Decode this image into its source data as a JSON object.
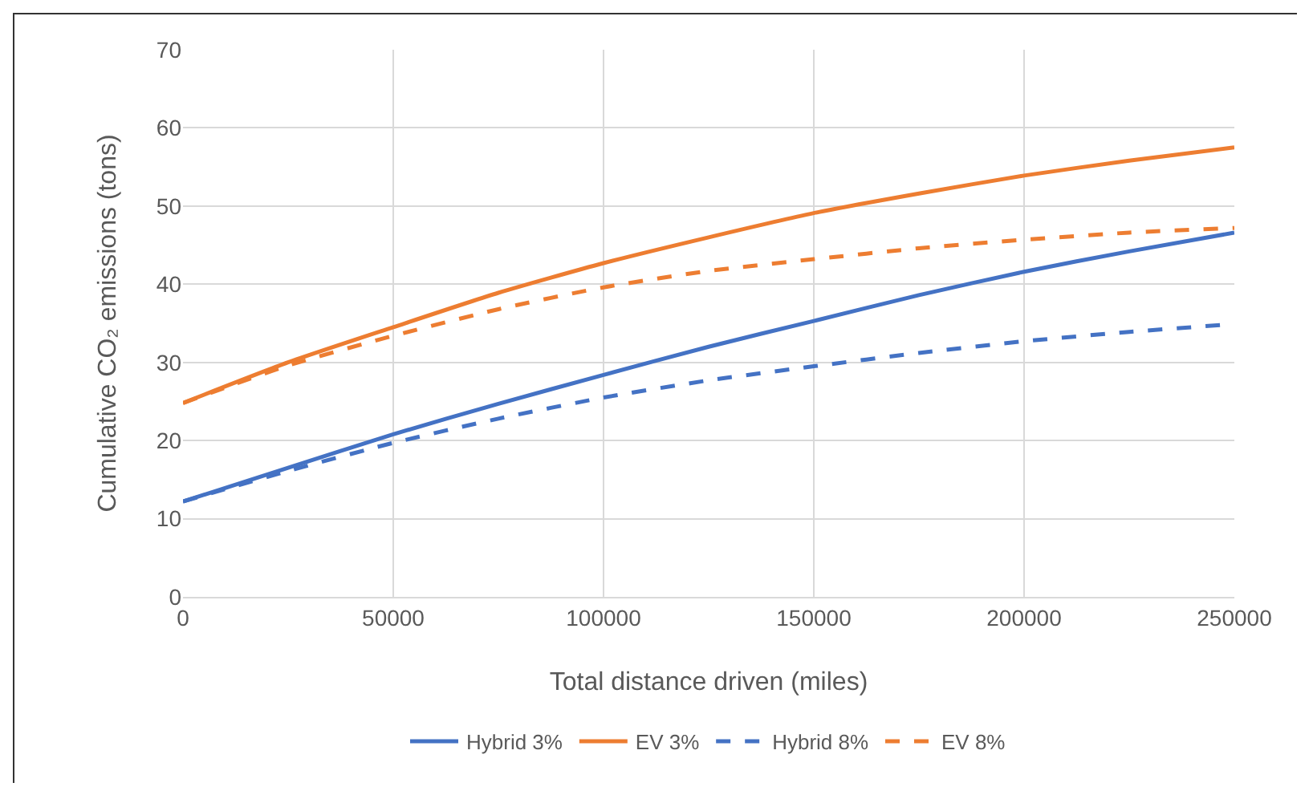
{
  "chart_data": {
    "type": "line",
    "xlabel": "Total distance driven (miles)",
    "ylabel": "Cumulative CO₂ emissions (tons)",
    "x": [
      0,
      25000,
      50000,
      75000,
      100000,
      125000,
      150000,
      175000,
      200000,
      225000,
      250000
    ],
    "series": [
      {
        "name": "Hybrid 3%",
        "color": "#4472c4",
        "line_style": "solid",
        "values": [
          12.2,
          16.5,
          20.8,
          24.7,
          28.4,
          32.0,
          35.3,
          38.6,
          41.6,
          44.2,
          46.6
        ]
      },
      {
        "name": "EV 3%",
        "color": "#ed7d31",
        "line_style": "solid",
        "values": [
          24.8,
          30.0,
          34.5,
          38.9,
          42.7,
          46.0,
          49.1,
          51.6,
          53.9,
          55.8,
          57.5
        ]
      },
      {
        "name": "Hybrid 8%",
        "color": "#4472c4",
        "line_style": "dashed",
        "values": [
          12.2,
          16.1,
          19.7,
          22.8,
          25.5,
          27.7,
          29.5,
          31.2,
          32.7,
          33.9,
          34.9
        ]
      },
      {
        "name": "EV 8%",
        "color": "#ed7d31",
        "line_style": "dashed",
        "values": [
          24.8,
          29.6,
          33.4,
          36.8,
          39.6,
          41.7,
          43.2,
          44.6,
          45.7,
          46.6,
          47.2
        ]
      }
    ],
    "xlim": [
      0,
      250000
    ],
    "xticks": [
      0,
      50000,
      100000,
      150000,
      200000,
      250000
    ],
    "ylim": [
      0,
      70
    ],
    "yticks": [
      0,
      10,
      20,
      30,
      40,
      50,
      60,
      70
    ],
    "grid": true,
    "legend": "bottom",
    "marker": "none"
  }
}
